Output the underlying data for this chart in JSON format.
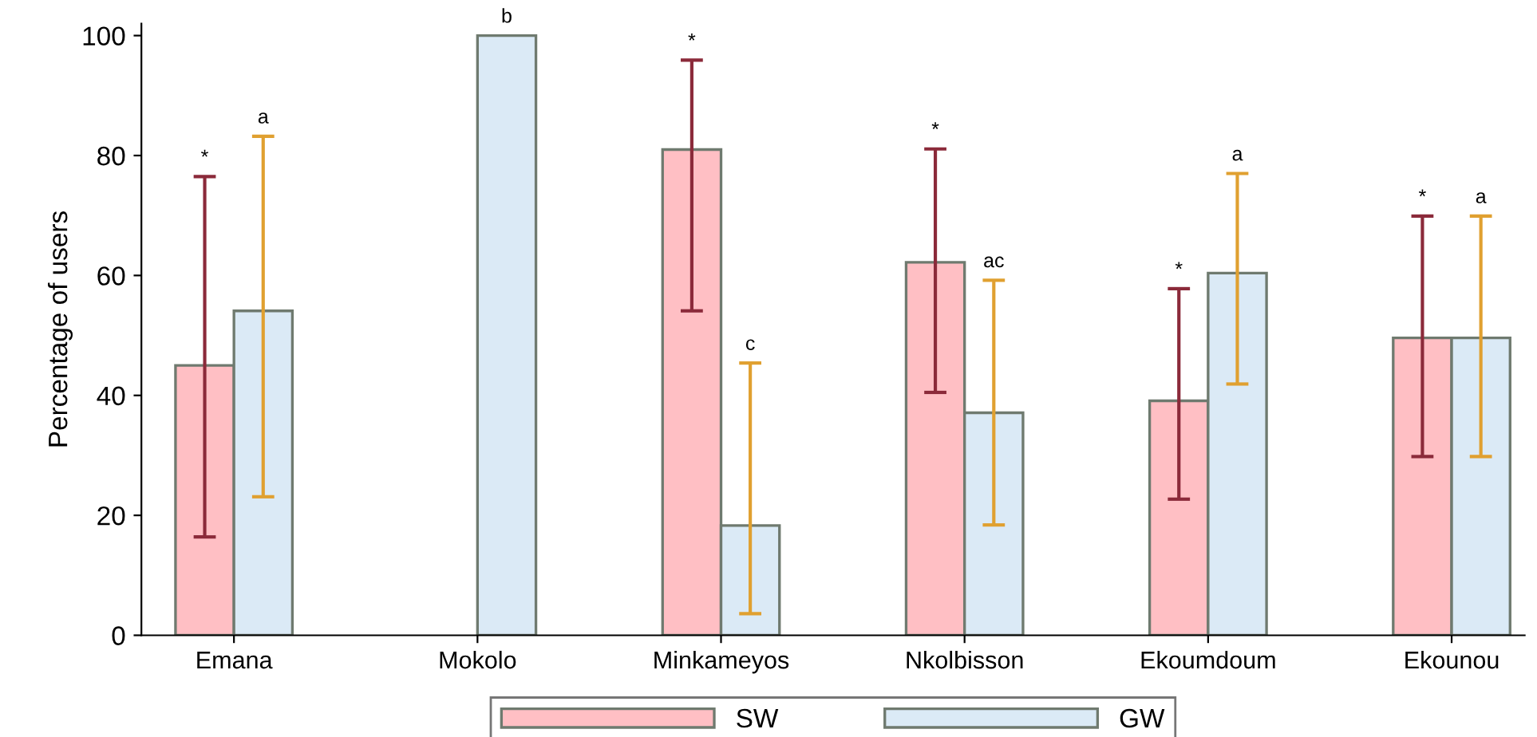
{
  "chart_data": {
    "type": "bar",
    "ylabel": "Percentage of users",
    "categories": [
      "Emana",
      "Mokolo",
      "Minkameyos",
      "Nkolbisson",
      "Ekoumdoum",
      "Ekounou"
    ],
    "series": [
      {
        "name": "SW",
        "color": "#ffbfc4",
        "values": [
          45,
          null,
          81,
          62.2,
          39.1,
          49.6
        ],
        "errors": [
          [
            16.4,
            76.5
          ],
          null,
          [
            54.1,
            95.9
          ],
          [
            40.5,
            81.1
          ],
          [
            22.7,
            57.8
          ],
          [
            29.8,
            69.9
          ]
        ]
      },
      {
        "name": "GW",
        "color": "#dbeaf6",
        "values": [
          54.1,
          100,
          18.3,
          37.1,
          60.4,
          49.6
        ],
        "errors": [
          [
            23.1,
            83.2
          ],
          null,
          [
            3.6,
            45.4
          ],
          [
            18.4,
            59.2
          ],
          [
            41.9,
            77
          ],
          [
            29.8,
            69.9
          ]
        ]
      }
    ],
    "annotations": [
      "*",
      "a",
      "b",
      "*",
      "c",
      "*",
      "ac",
      "*",
      "a",
      "*",
      "a"
    ],
    "ylim": [
      0,
      102
    ],
    "yticks": [
      0,
      20,
      40,
      60,
      80,
      100
    ],
    "grid": false,
    "legend": "bottom"
  }
}
